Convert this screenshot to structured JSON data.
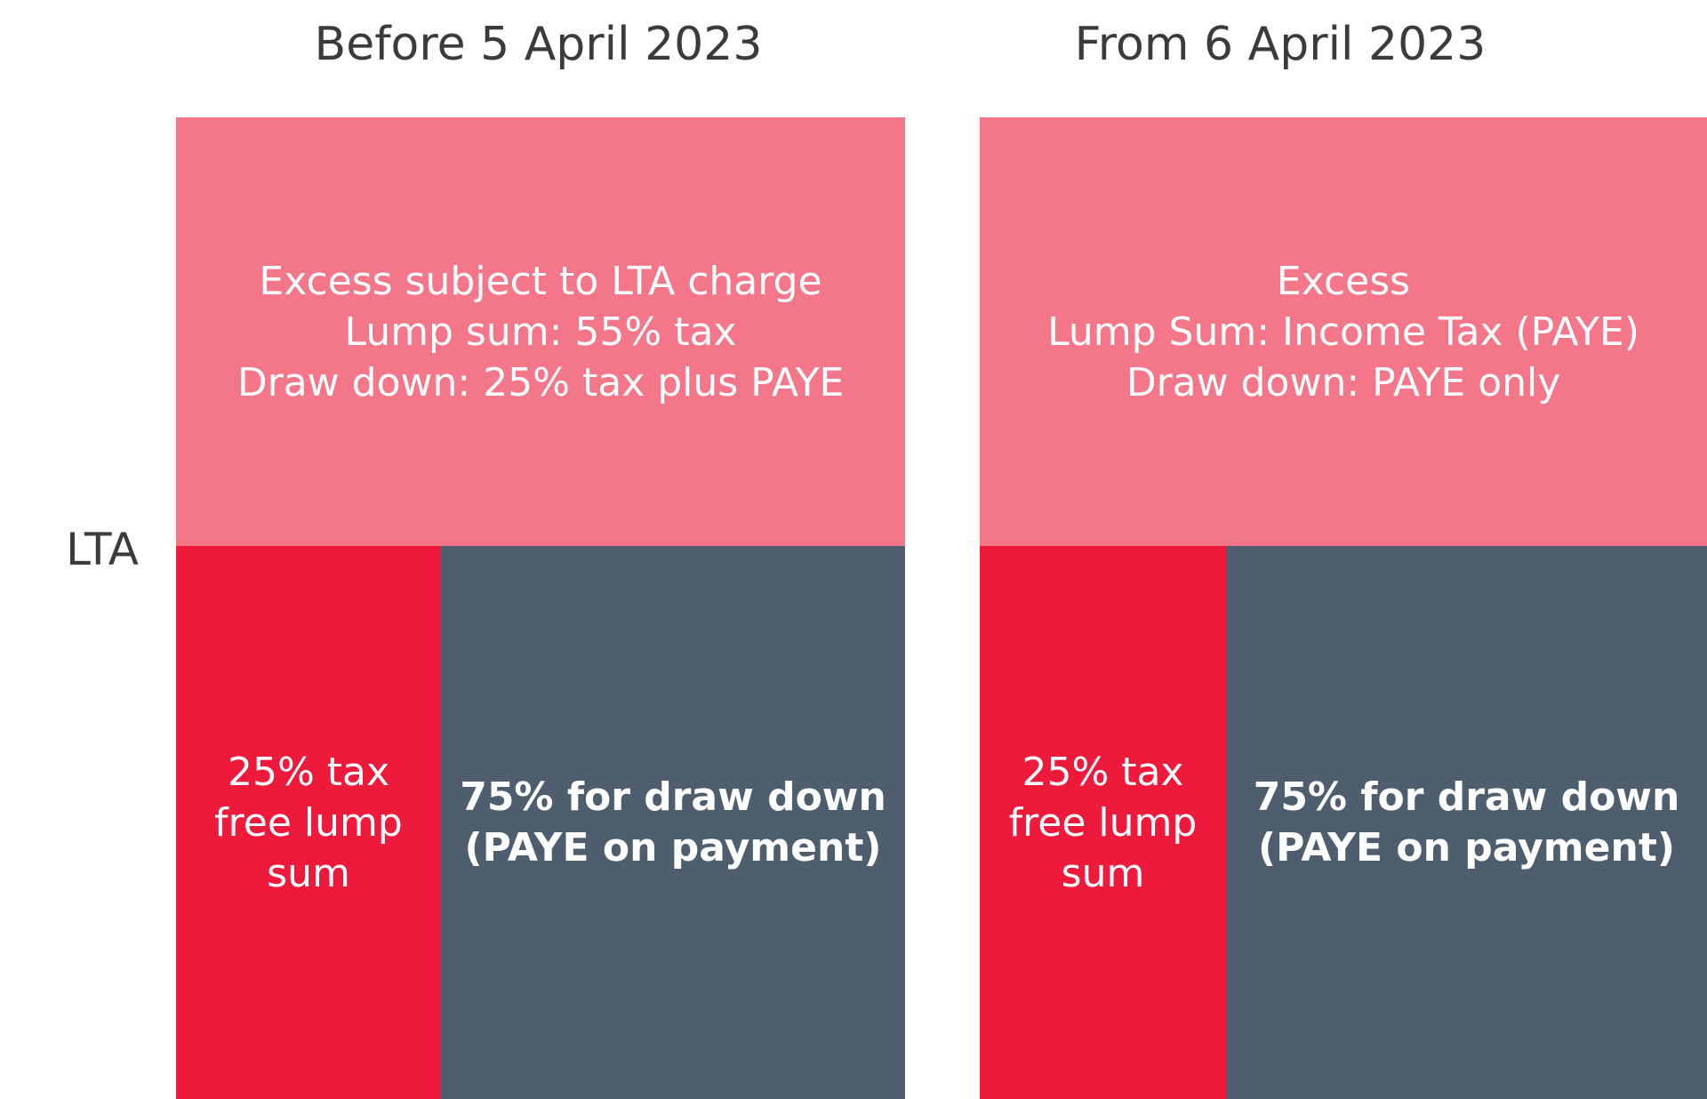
{
  "colors": {
    "excess": "#f47789",
    "lump_sum": "#ed1a3b",
    "draw_down": "#4e5e6e",
    "text_dark": "#3b3b3b"
  },
  "lta_label": "LTA",
  "panels": [
    {
      "heading": "Before 5 April 2023",
      "excess": [
        "Excess subject to LTA charge",
        "Lump sum: 55% tax",
        "Draw down: 25% tax plus PAYE"
      ],
      "lump_sum": [
        "25% tax",
        "free lump",
        "sum"
      ],
      "draw_down": [
        "75% for draw down",
        "(PAYE on payment)"
      ]
    },
    {
      "heading": "From 6 April 2023",
      "excess": [
        "Excess",
        "Lump Sum: Income Tax (PAYE)",
        "Draw down: PAYE only"
      ],
      "lump_sum": [
        "25% tax",
        "free lump",
        "sum"
      ],
      "draw_down": [
        "75% for draw down",
        "(PAYE on payment)"
      ]
    }
  ]
}
